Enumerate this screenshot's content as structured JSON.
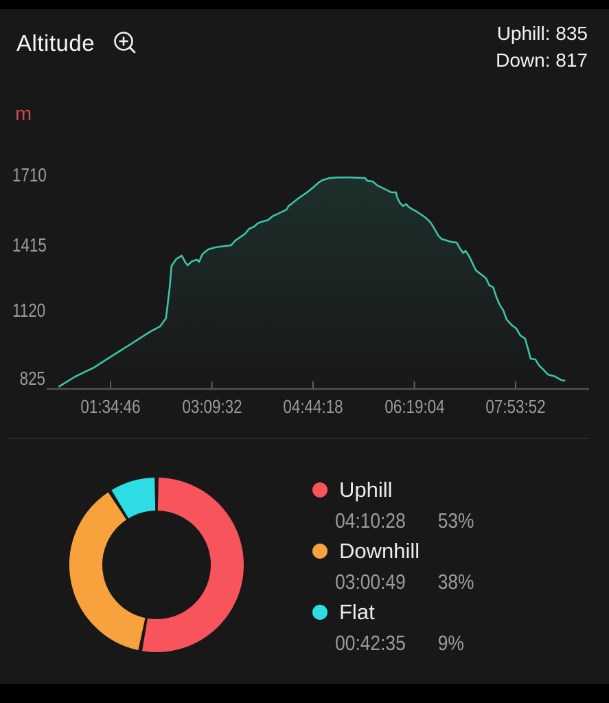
{
  "header": {
    "title": "Altitude",
    "uphill": "Uphill: 835",
    "down": "Down: 817"
  },
  "chart_data": [
    {
      "type": "area",
      "title": "Altitude profile",
      "xlabel": "",
      "ylabel": "m",
      "y_ticks": [
        "1710",
        "1415",
        "1120",
        "825"
      ],
      "x_ticks": [
        "01:34:46",
        "03:09:32",
        "04:44:18",
        "06:19:04",
        "07:53:52"
      ],
      "ylim": [
        825,
        1710
      ],
      "grid": false,
      "legend_position": "none",
      "line_color": "#3dc3a9",
      "series": [
        {
          "name": "altitude_m",
          "points": [
            [
              0.022,
              831
            ],
            [
              0.053,
              874
            ],
            [
              0.087,
              911
            ],
            [
              0.12,
              959
            ],
            [
              0.157,
              1011
            ],
            [
              0.19,
              1059
            ],
            [
              0.209,
              1082
            ],
            [
              0.22,
              1116
            ],
            [
              0.227,
              1248
            ],
            [
              0.23,
              1333
            ],
            [
              0.239,
              1362
            ],
            [
              0.249,
              1376
            ],
            [
              0.256,
              1347
            ],
            [
              0.26,
              1336
            ],
            [
              0.268,
              1353
            ],
            [
              0.277,
              1359
            ],
            [
              0.281,
              1350
            ],
            [
              0.287,
              1382
            ],
            [
              0.298,
              1402
            ],
            [
              0.31,
              1410
            ],
            [
              0.328,
              1416
            ],
            [
              0.34,
              1419
            ],
            [
              0.348,
              1439
            ],
            [
              0.357,
              1453
            ],
            [
              0.366,
              1467
            ],
            [
              0.373,
              1487
            ],
            [
              0.382,
              1496
            ],
            [
              0.389,
              1510
            ],
            [
              0.395,
              1516
            ],
            [
              0.408,
              1524
            ],
            [
              0.416,
              1539
            ],
            [
              0.429,
              1553
            ],
            [
              0.442,
              1567
            ],
            [
              0.446,
              1582
            ],
            [
              0.454,
              1596
            ],
            [
              0.467,
              1619
            ],
            [
              0.48,
              1639
            ],
            [
              0.492,
              1661
            ],
            [
              0.502,
              1681
            ],
            [
              0.509,
              1690
            ],
            [
              0.522,
              1699
            ],
            [
              0.538,
              1701
            ],
            [
              0.56,
              1701
            ],
            [
              0.581,
              1699
            ],
            [
              0.587,
              1699
            ],
            [
              0.591,
              1687
            ],
            [
              0.601,
              1684
            ],
            [
              0.61,
              1667
            ],
            [
              0.623,
              1653
            ],
            [
              0.635,
              1639
            ],
            [
              0.644,
              1639
            ],
            [
              0.646,
              1619
            ],
            [
              0.651,
              1596
            ],
            [
              0.657,
              1582
            ],
            [
              0.663,
              1590
            ],
            [
              0.667,
              1579
            ],
            [
              0.673,
              1570
            ],
            [
              0.682,
              1559
            ],
            [
              0.692,
              1544
            ],
            [
              0.699,
              1533
            ],
            [
              0.708,
              1513
            ],
            [
              0.715,
              1487
            ],
            [
              0.722,
              1459
            ],
            [
              0.728,
              1445
            ],
            [
              0.737,
              1439
            ],
            [
              0.746,
              1433
            ],
            [
              0.756,
              1430
            ],
            [
              0.762,
              1405
            ],
            [
              0.768,
              1387
            ],
            [
              0.772,
              1396
            ],
            [
              0.779,
              1373
            ],
            [
              0.785,
              1345
            ],
            [
              0.791,
              1316
            ],
            [
              0.797,
              1305
            ],
            [
              0.804,
              1293
            ],
            [
              0.81,
              1282
            ],
            [
              0.816,
              1253
            ],
            [
              0.823,
              1245
            ],
            [
              0.829,
              1205
            ],
            [
              0.835,
              1173
            ],
            [
              0.842,
              1148
            ],
            [
              0.848,
              1111
            ],
            [
              0.857,
              1088
            ],
            [
              0.866,
              1073
            ],
            [
              0.873,
              1045
            ],
            [
              0.882,
              1031
            ],
            [
              0.889,
              976
            ],
            [
              0.892,
              948
            ],
            [
              0.901,
              945
            ],
            [
              0.908,
              919
            ],
            [
              0.916,
              902
            ],
            [
              0.924,
              882
            ],
            [
              0.937,
              874
            ],
            [
              0.949,
              859
            ],
            [
              0.956,
              856
            ]
          ]
        }
      ]
    },
    {
      "type": "pie",
      "style": "donut",
      "legend_position": "right",
      "segments": [
        {
          "label": "Uphill",
          "time": "04:10:28",
          "percent": 53,
          "percent_label": "53%",
          "color": "#f8545b"
        },
        {
          "label": "Downhill",
          "time": "03:00:49",
          "percent": 38,
          "percent_label": "38%",
          "color": "#f8a23e"
        },
        {
          "label": "Flat",
          "time": "00:42:35",
          "percent": 9,
          "percent_label": "9%",
          "color": "#2edde4"
        }
      ]
    }
  ],
  "colors": {
    "panel_bg": "#181818",
    "letterbox": "#000000",
    "text_primary": "#f2f2f2",
    "text_secondary": "#9b9b9b",
    "axis": "#515151",
    "unit_red": "#cc464d",
    "line_teal": "#3dc3a9"
  }
}
